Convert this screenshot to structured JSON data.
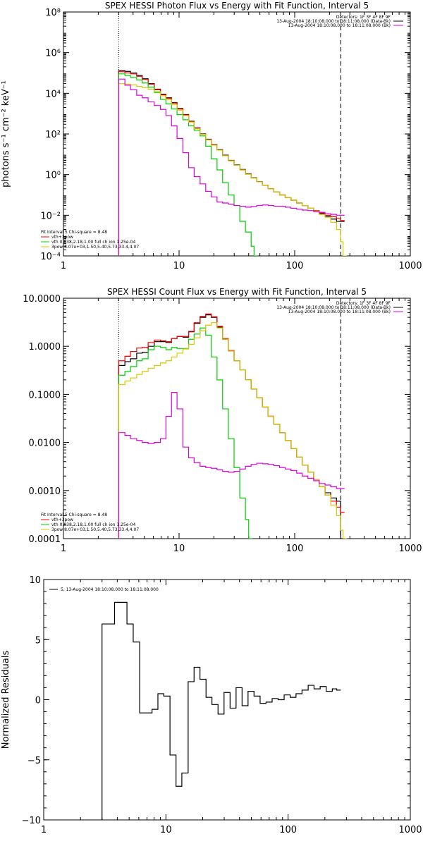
{
  "chart_data": [
    {
      "type": "line",
      "title": "SPEX HESSI Photon Flux vs Energy with Fit Function, Interval 5",
      "ylabel": "photons s⁻¹ cm⁻² keV⁻¹",
      "xlabel": "",
      "xscale": "log",
      "yscale": "log",
      "xlim": [
        1,
        1000
      ],
      "ylim": [
        0.0001,
        100000000
      ],
      "xticks": [
        "1",
        "10",
        "100",
        "1000"
      ],
      "yticks": [
        "10⁻⁴",
        "10⁻²",
        "10⁰",
        "10²",
        "10⁴",
        "10⁶",
        "10⁸"
      ],
      "vlines": [
        {
          "x": 3.0,
          "style": "dotted"
        },
        {
          "x": 250,
          "style": "dashed"
        }
      ],
      "legend_top": [
        "Detectors: 1F 3F 4F 8F 9F",
        "13-Aug-2004 18:10:08.000 to 18:11:08.000 (Data-Bk)",
        "13-Aug-2004 18:10:08.000 to 18:11:08.000 (Bk)"
      ],
      "legend_bottom": [
        "Fit Interval 5   Chi-square = 8.48",
        "vth+3pow",
        "vth 0.838,2.18,1.00  full ch ion 1.25e-04",
        "3pow 8.07e+03,1.50,5.40,5.73,33.4,4.07"
      ],
      "series": [
        {
          "name": "13-Aug-2004 18:10:08.000 to 18:11:08.000 (Data-Bk)",
          "color": "#000000",
          "x": [
            3.0,
            3.4,
            3.8,
            4.3,
            4.8,
            5.4,
            6.1,
            6.9,
            7.7,
            8.6,
            9.6,
            10.8,
            12.1,
            13.5,
            15.2,
            17.0,
            19.0,
            21.3,
            23.8,
            26.7,
            29.9,
            33.5,
            37.5,
            42.0,
            47.0,
            52.6,
            59.0,
            66.0,
            74.0,
            82.8,
            92.8,
            104,
            116,
            130,
            146,
            163,
            183,
            205,
            230,
            250
          ],
          "y": [
            130000,
            120000,
            100000,
            75000,
            52000,
            30000,
            16000,
            9000,
            6000,
            3500,
            1800,
            900,
            420,
            200,
            100,
            55,
            30,
            17,
            9,
            5,
            3,
            1.8,
            1.1,
            0.7,
            0.45,
            0.3,
            0.2,
            0.14,
            0.1,
            0.075,
            0.055,
            0.04,
            0.03,
            0.022,
            0.016,
            0.012,
            0.009,
            0.0065,
            0.005,
            0.005
          ]
        },
        {
          "name": "vth+3pow",
          "color": "#ff0000",
          "x": [
            3.0,
            3.4,
            3.8,
            4.3,
            4.8,
            5.4,
            6.1,
            6.9,
            7.7,
            8.6,
            9.6,
            10.8,
            12.1,
            13.5,
            15.2,
            17.0,
            19.0,
            21.3,
            23.8,
            26.7,
            29.9,
            33.5,
            37.5,
            42.0,
            47.0,
            52.6,
            59.0,
            66.0,
            74.0,
            82.8,
            92.8,
            104,
            116,
            130,
            146,
            163,
            183,
            205,
            230,
            250
          ],
          "y": [
            115000,
            100000,
            90000,
            68000,
            48000,
            28000,
            15000,
            8500,
            5600,
            3300,
            1700,
            860,
            400,
            190,
            95,
            52,
            29,
            16,
            8.5,
            4.8,
            2.9,
            1.7,
            1.05,
            0.68,
            0.44,
            0.3,
            0.2,
            0.14,
            0.1,
            0.075,
            0.055,
            0.04,
            0.03,
            0.022,
            0.017,
            0.013,
            0.01,
            0.0085,
            0.007,
            0.0055
          ]
        },
        {
          "name": "vth",
          "color": "#00d000",
          "x": [
            3.0,
            3.4,
            3.8,
            4.3,
            4.8,
            5.4,
            6.1,
            6.9,
            7.7,
            8.6,
            9.6,
            10.8,
            12.1,
            13.5,
            15.2,
            17.0,
            19.0,
            21.3,
            23.8,
            26.7,
            29.9,
            33.5,
            37.5,
            42.0,
            44.5
          ],
          "y": [
            90000,
            75000,
            60000,
            45000,
            32000,
            20000,
            11000,
            5000,
            3000,
            1700,
            900,
            500,
            250,
            150,
            80,
            25,
            6,
            1.7,
            0.4,
            0.1,
            0.03,
            0.005,
            0.0015,
            0.0003,
            0.0001
          ]
        },
        {
          "name": "3pow",
          "color": "#d8c800",
          "x": [
            3.0,
            3.4,
            3.8,
            4.3,
            4.8,
            5.4,
            6.1,
            6.9,
            7.7,
            8.6,
            9.6,
            10.8,
            12.1,
            13.5,
            15.2,
            17.0,
            19.0,
            21.3,
            23.8,
            26.7,
            29.9,
            33.5,
            37.5,
            42.0,
            47.0,
            52.6,
            59.0,
            66.0,
            74.0,
            82.8,
            92.8,
            104,
            116,
            130,
            146,
            163,
            183,
            205,
            230,
            250,
            262
          ],
          "y": [
            30000,
            28000,
            26000,
            22000,
            19000,
            16000,
            12000,
            7500,
            5000,
            2800,
            1500,
            800,
            380,
            180,
            95,
            52,
            28,
            16,
            8.5,
            4.8,
            2.9,
            1.7,
            1.05,
            0.68,
            0.44,
            0.3,
            0.2,
            0.14,
            0.1,
            0.075,
            0.055,
            0.04,
            0.03,
            0.022,
            0.016,
            0.011,
            0.008,
            0.0045,
            0.002,
            0.0005,
            0.0001
          ]
        },
        {
          "name": "13-Aug-2004 18:10:08.000 to 18:11:08.000 (Bk)",
          "color": "#dd00dd",
          "x": [
            3.0,
            3.4,
            3.8,
            4.3,
            4.8,
            5.4,
            6.1,
            6.9,
            7.7,
            8.6,
            9.6,
            10.8,
            12.1,
            13.5,
            15.2,
            17.0,
            19.0,
            21.3,
            23.8,
            26.7,
            29.9,
            33.5,
            37.5,
            42.0,
            47.0,
            52.6,
            59.0,
            66.0,
            74.0,
            82.8,
            92.8,
            104,
            116,
            130,
            146,
            163,
            183,
            205,
            230,
            250
          ],
          "y": [
            50000,
            25000,
            15000,
            8000,
            6000,
            3800,
            2500,
            1600,
            800,
            250,
            60,
            12,
            2.2,
            0.8,
            0.35,
            0.15,
            0.08,
            0.045,
            0.04,
            0.035,
            0.03,
            0.028,
            0.025,
            0.027,
            0.03,
            0.032,
            0.03,
            0.028,
            0.028,
            0.025,
            0.022,
            0.02,
            0.018,
            0.017,
            0.015,
            0.014,
            0.012,
            0.011,
            0.01,
            0.01
          ]
        }
      ]
    },
    {
      "type": "line",
      "title": "SPEX HESSI Count Flux vs Energy with Fit Function, Interval 5",
      "xlabel": "",
      "ylabel": "",
      "xscale": "log",
      "yscale": "log",
      "xlim": [
        1,
        1000
      ],
      "ylim": [
        0.0001,
        10
      ],
      "xticks": [
        "1",
        "10",
        "100",
        "1000"
      ],
      "yticks": [
        "0.0001",
        "0.0010",
        "0.0100",
        "0.1000",
        "1.0000",
        "10.0000"
      ],
      "vlines": [
        {
          "x": 3.0,
          "style": "dotted"
        },
        {
          "x": 250,
          "style": "dashed"
        }
      ],
      "legend_top": [
        "Detectors: 1F 3F 4F 8F 9F",
        "13-Aug-2004 18:10:08.000 to 18:11:08.000 (Data-Bk)",
        "13-Aug-2004 18:10:08.000 to 18:11:08.000 (Bk)"
      ],
      "legend_bottom": [
        "Fit Interval 5   Chi-square = 8.48",
        "vth+3pow",
        "vth 0.838,2.18,1.00  full ch ion 1.25e-04",
        "3pow 8.07e+03,1.50,5.40,5.73,33.4,4.07"
      ],
      "series": [
        {
          "name": "13-Aug-2004 18:10:08.000 to 18:11:08.000 (Data-Bk)",
          "color": "#000000",
          "x": [
            3.0,
            3.4,
            3.8,
            4.3,
            4.8,
            5.4,
            6.1,
            6.9,
            7.7,
            8.6,
            9.6,
            10.8,
            12.1,
            13.5,
            15.2,
            17.0,
            19.0,
            21.3,
            23.8,
            26.7,
            29.9,
            33.5,
            37.5,
            42.0,
            47.0,
            52.6,
            59.0,
            66.0,
            74.0,
            82.8,
            92.8,
            104,
            116,
            130,
            146,
            163,
            183,
            205,
            230,
            250
          ],
          "y": [
            0.4,
            0.48,
            0.55,
            0.72,
            0.75,
            1.0,
            1.25,
            1.25,
            1.2,
            1.45,
            1.6,
            1.55,
            2.0,
            3.0,
            4.0,
            4.5,
            4.0,
            2.5,
            1.4,
            0.8,
            0.5,
            0.32,
            0.2,
            0.13,
            0.085,
            0.055,
            0.035,
            0.024,
            0.016,
            0.011,
            0.0075,
            0.005,
            0.0034,
            0.0024,
            0.0017,
            0.0012,
            0.0009,
            0.0007,
            0.0006,
            0.0001
          ]
        },
        {
          "name": "vth+3pow",
          "color": "#ff0000",
          "x": [
            3.0,
            3.4,
            3.8,
            4.3,
            4.8,
            5.4,
            6.1,
            6.9,
            7.7,
            8.6,
            9.6,
            10.8,
            12.1,
            13.5,
            15.2,
            17.0,
            19.0,
            21.3,
            23.8,
            26.7,
            29.9,
            33.5,
            37.5,
            42.0,
            47.0,
            52.6,
            59.0,
            66.0,
            74.0,
            82.8,
            92.8,
            104,
            116,
            130,
            146,
            163,
            183,
            205,
            230,
            250
          ],
          "y": [
            0.5,
            0.62,
            0.78,
            0.92,
            0.95,
            1.2,
            1.35,
            1.3,
            1.25,
            1.45,
            1.6,
            1.6,
            2.05,
            3.1,
            4.2,
            4.7,
            4.1,
            2.6,
            1.45,
            0.82,
            0.5,
            0.32,
            0.2,
            0.13,
            0.085,
            0.055,
            0.035,
            0.024,
            0.016,
            0.011,
            0.0075,
            0.005,
            0.0034,
            0.0024,
            0.0017,
            0.0012,
            0.0008,
            0.0006,
            0.00045,
            0.00035
          ]
        },
        {
          "name": "vth",
          "color": "#00d000",
          "x": [
            3.0,
            3.4,
            3.8,
            4.3,
            4.8,
            5.4,
            6.1,
            6.9,
            7.7,
            8.6,
            9.6,
            10.8,
            12.1,
            13.5,
            15.2,
            17.0,
            19.0,
            21.3,
            23.8,
            26.7,
            29.9,
            33.5,
            37.5,
            40.0
          ],
          "y": [
            0.25,
            0.3,
            0.38,
            0.5,
            0.55,
            0.85,
            1.0,
            0.95,
            0.85,
            0.95,
            0.9,
            0.9,
            1.4,
            1.8,
            2.4,
            1.7,
            0.6,
            0.2,
            0.05,
            0.012,
            0.003,
            0.0007,
            0.00025,
            0.0001
          ]
        },
        {
          "name": "3pow",
          "color": "#d8c800",
          "x": [
            3.0,
            3.4,
            3.8,
            4.3,
            4.8,
            5.4,
            6.1,
            6.9,
            7.7,
            8.6,
            9.6,
            10.8,
            12.1,
            13.5,
            15.2,
            17.0,
            19.0,
            21.3,
            23.8,
            26.7,
            29.9,
            33.5,
            37.5,
            42.0,
            47.0,
            52.6,
            59.0,
            66.0,
            74.0,
            82.8,
            92.8,
            104,
            116,
            130,
            146,
            163,
            183,
            205,
            230,
            250,
            262
          ],
          "y": [
            0.16,
            0.19,
            0.22,
            0.26,
            0.3,
            0.35,
            0.4,
            0.45,
            0.5,
            0.6,
            0.72,
            0.88,
            1.1,
            1.5,
            2.1,
            2.75,
            3.1,
            2.4,
            1.4,
            0.8,
            0.5,
            0.32,
            0.2,
            0.13,
            0.085,
            0.055,
            0.035,
            0.024,
            0.016,
            0.011,
            0.0075,
            0.005,
            0.0034,
            0.0024,
            0.0017,
            0.0012,
            0.0008,
            0.0005,
            0.0003,
            0.00015,
            0.0001
          ]
        },
        {
          "name": "13-Aug-2004 18:10:08.000 to 18:11:08.000 (Bk)",
          "color": "#dd00dd",
          "x": [
            3.0,
            3.4,
            3.8,
            4.3,
            4.8,
            5.4,
            6.1,
            6.9,
            7.7,
            8.6,
            9.6,
            10.8,
            12.1,
            13.5,
            15.2,
            17.0,
            19.0,
            21.3,
            23.8,
            26.7,
            29.9,
            33.5,
            37.5,
            42.0,
            47.0,
            52.6,
            59.0,
            66.0,
            74.0,
            82.8,
            92.8,
            104,
            116,
            130,
            146,
            163,
            183,
            205,
            230,
            250
          ],
          "y": [
            0.016,
            0.014,
            0.012,
            0.011,
            0.01,
            0.0095,
            0.01,
            0.012,
            0.035,
            0.11,
            0.05,
            0.008,
            0.0048,
            0.0038,
            0.0032,
            0.003,
            0.0029,
            0.0027,
            0.0025,
            0.0024,
            0.0025,
            0.0028,
            0.0032,
            0.0035,
            0.0037,
            0.0036,
            0.0035,
            0.0033,
            0.003,
            0.0028,
            0.0026,
            0.0023,
            0.002,
            0.0018,
            0.0016,
            0.0014,
            0.0013,
            0.0012,
            0.0011,
            0.0011
          ]
        }
      ]
    },
    {
      "type": "line",
      "title": "",
      "xlabel": "",
      "ylabel": "Normalized Residuals",
      "xscale": "log",
      "yscale": "linear",
      "xlim": [
        1,
        1000
      ],
      "ylim": [
        -10,
        10
      ],
      "xticks": [
        "1",
        "10",
        "100",
        "1000"
      ],
      "yticks": [
        "−10",
        "−5",
        "0",
        "5",
        "10"
      ],
      "legend": [
        "5, 13-Aug-2004 18:10:08.000 to 18:11:08.000"
      ],
      "series": [
        {
          "name": "5, 13-Aug-2004 18:10:08.000 to 18:11:08.000",
          "color": "#000000",
          "x": [
            3.0,
            3.4,
            3.8,
            4.3,
            4.8,
            5.4,
            6.1,
            6.9,
            7.7,
            8.6,
            9.6,
            10.8,
            12.1,
            13.5,
            15.2,
            17.0,
            19.0,
            21.3,
            23.8,
            26.7,
            29.9,
            33.5,
            37.5,
            42.0,
            47.0,
            52.6,
            59.0,
            66.0,
            74.0,
            82.8,
            92.8,
            104,
            116,
            130,
            146,
            163,
            183,
            205,
            230,
            250
          ],
          "y": [
            6.3,
            6.3,
            8.1,
            8.1,
            6.3,
            4.8,
            -1.1,
            -1.1,
            -0.8,
            0.5,
            0.3,
            -4.6,
            -7.2,
            -6.1,
            1.5,
            2.7,
            1.7,
            0.2,
            -0.4,
            -1.2,
            0.6,
            -0.7,
            1.0,
            -0.5,
            0.7,
            0.3,
            -0.3,
            -0.2,
            0.1,
            0.0,
            0.4,
            0.2,
            0.5,
            0.8,
            1.2,
            0.9,
            1.1,
            0.7,
            0.9,
            0.8
          ]
        }
      ]
    }
  ]
}
